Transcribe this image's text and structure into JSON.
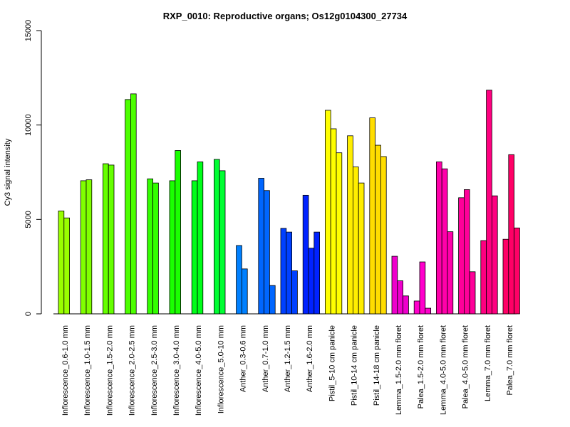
{
  "chart_data": {
    "type": "bar",
    "title": "RXP_0010: Reproductive organs; Os12g0104300_27734",
    "xlabel": "",
    "ylabel": "Cy3 signal intensity",
    "ylim": [
      0,
      15000
    ],
    "yticks": [
      0,
      5000,
      10000,
      15000
    ],
    "grid": false,
    "legend": "none",
    "categories": [
      "Inflorescence_0.6-1.0 mm",
      "Inflorescence_1.0-1.5 mm",
      "Inflorescence_1.5-2.0 mm",
      "Inflorescence_2.0-2.5 mm",
      "Inflorescence_2.5-3.0 mm",
      "Inflorescence_3.0-4.0 mm",
      "Inflorescence_4.0-5.0 mm",
      "Inflorescence_5.0-10 mm",
      "Anther_0.3-0.6 mm",
      "Anther_0.7-1.0 mm",
      "Anther_1.2-1.5 mm",
      "Anther_1.6-2.0 mm",
      "Pistil_5-10 cm panicle",
      "Pistil_10-14 cm panicle",
      "Pistil_14-18 cm panicle",
      "Lemma_1.5-2.0 mm floret",
      "Palea_1.5-2.0 mm floret",
      "Lemma_4.0-5.0 mm floret",
      "Palea_4.0-5.0 mm floret",
      "Lemma_7.0 mm floret",
      "Palea_7.0 mm floret"
    ],
    "groups": [
      {
        "color": "#99ff00",
        "values": [
          5450,
          5080
        ]
      },
      {
        "color": "#80ff00",
        "values": [
          7050,
          7100
        ]
      },
      {
        "color": "#66ff00",
        "values": [
          7950,
          7880
        ]
      },
      {
        "color": "#4cff00",
        "values": [
          11350,
          11650
        ]
      },
      {
        "color": "#33ff00",
        "values": [
          7150,
          6930
        ]
      },
      {
        "color": "#1aff00",
        "values": [
          7050,
          8650
        ]
      },
      {
        "color": "#00ff1a",
        "values": [
          7050,
          8050
        ]
      },
      {
        "color": "#00ff33",
        "values": [
          8180,
          7580
        ]
      },
      {
        "color": "#0080ff",
        "values": [
          3620,
          2380
        ]
      },
      {
        "color": "#0066ff",
        "values": [
          7180,
          6530,
          1500
        ]
      },
      {
        "color": "#0040ff",
        "values": [
          4530,
          4330,
          2280
        ]
      },
      {
        "color": "#0022ff",
        "values": [
          6280,
          3480,
          4330
        ]
      },
      {
        "color": "#ffff00",
        "values": [
          10780,
          9800,
          8530
        ]
      },
      {
        "color": "#ffee00",
        "values": [
          9430,
          7780,
          6930
        ]
      },
      {
        "color": "#ffdd00",
        "values": [
          10380,
          8930,
          8330
        ]
      },
      {
        "color": "#ee00cc",
        "values": [
          3050,
          1750,
          950
        ]
      },
      {
        "color": "#ff00cc",
        "values": [
          680,
          2750,
          300
        ]
      },
      {
        "color": "#ff00aa",
        "values": [
          8050,
          7680,
          4350
        ]
      },
      {
        "color": "#ff0099",
        "values": [
          6150,
          6580,
          2230
        ]
      },
      {
        "color": "#ff0080",
        "values": [
          3880,
          11850,
          6250
        ]
      },
      {
        "color": "#ff0066",
        "values": [
          3950,
          8430,
          4550
        ]
      }
    ]
  }
}
